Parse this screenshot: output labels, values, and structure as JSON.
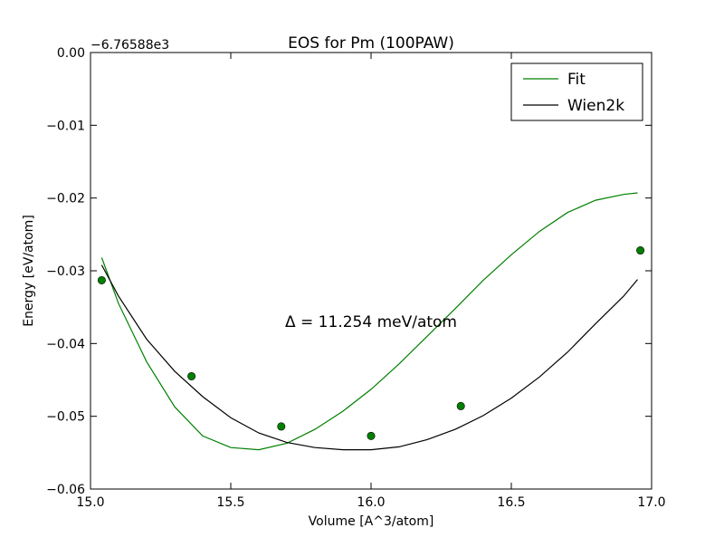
{
  "chart_data": {
    "type": "line",
    "title": "EOS for Pm (100PAW)",
    "xlabel": "Volume [A^3/atom]",
    "ylabel": "Energy [eV/atom]",
    "offset_label": "−6.76588e3",
    "annotation": "Δ = 11.254 meV/atom",
    "xlim": [
      15.0,
      17.0
    ],
    "ylim": [
      -0.06,
      0.0
    ],
    "x_ticks": [
      15.0,
      15.5,
      16.0,
      16.5,
      17.0
    ],
    "x_tick_labels": [
      "15.0",
      "15.5",
      "16.0",
      "16.5",
      "17.0"
    ],
    "y_ticks": [
      0.0,
      -0.01,
      -0.02,
      -0.03,
      -0.04,
      -0.05,
      -0.06
    ],
    "y_tick_labels": [
      "0.00",
      "−0.01",
      "−0.02",
      "−0.03",
      "−0.04",
      "−0.05",
      "−0.06"
    ],
    "legend_position": "top-right",
    "grid": false,
    "series": [
      {
        "name": "Fit",
        "color": "#008000",
        "x": [
          15.04,
          15.1,
          15.2,
          15.3,
          15.4,
          15.5,
          15.6,
          15.7,
          15.8,
          15.9,
          16.0,
          16.1,
          16.2,
          16.3,
          16.4,
          16.5,
          16.6,
          16.7,
          16.8,
          16.9,
          16.95
        ],
        "y": [
          -0.0282,
          -0.0345,
          -0.0425,
          -0.0487,
          -0.0527,
          -0.0543,
          -0.0546,
          -0.0537,
          -0.0518,
          -0.0493,
          -0.0463,
          -0.0428,
          -0.039,
          -0.0352,
          -0.0313,
          -0.0278,
          -0.0246,
          -0.022,
          -0.0203,
          -0.0195,
          -0.0193
        ]
      },
      {
        "name": "Wien2k",
        "color": "#000000",
        "x": [
          15.04,
          15.1,
          15.2,
          15.3,
          15.4,
          15.5,
          15.6,
          15.7,
          15.8,
          15.9,
          16.0,
          16.1,
          16.2,
          16.3,
          16.4,
          16.5,
          16.6,
          16.7,
          16.8,
          16.9,
          16.95
        ],
        "y": [
          -0.0292,
          -0.0335,
          -0.0394,
          -0.0438,
          -0.0473,
          -0.0502,
          -0.0523,
          -0.0536,
          -0.0543,
          -0.0546,
          -0.0546,
          -0.0542,
          -0.0532,
          -0.0518,
          -0.0499,
          -0.0475,
          -0.0446,
          -0.0412,
          -0.0373,
          -0.0335,
          -0.0312
        ]
      }
    ],
    "points": {
      "color": "#008000",
      "x": [
        15.04,
        15.36,
        15.68,
        16.0,
        16.32,
        16.96
      ],
      "y": [
        -0.0313,
        -0.0445,
        -0.0514,
        -0.0527,
        -0.0486,
        -0.0272
      ]
    }
  }
}
